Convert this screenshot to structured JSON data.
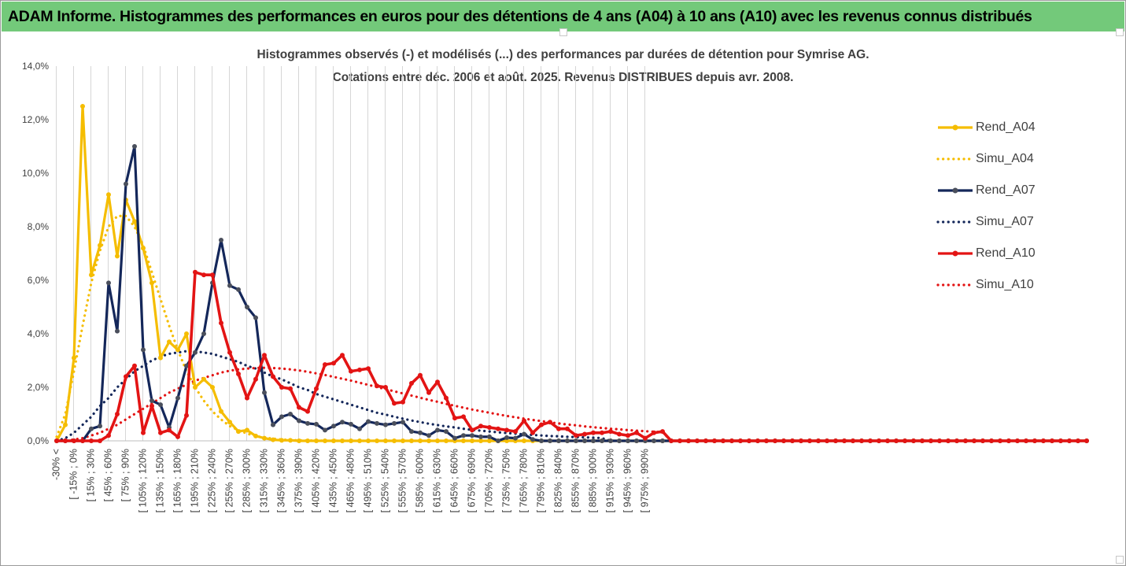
{
  "header": {
    "title": "ADAM Informe. Histogrammes des performances en euros pour des détentions de 4 ans (A04) à 10 ans (A10) avec les revenus connus distribués"
  },
  "chart_data": {
    "type": "line",
    "title": "Histogrammes observés (-) et modélisés (...) des performances par durées de détention pour Symrise  AG.",
    "subtitle": "Cotations entre déc. 2006 et août. 2025. Revenus DISTRIBUES depuis avr. 2008.",
    "xlabel": "",
    "ylabel": "",
    "ylim": [
      0,
      14
    ],
    "y_unit": "%",
    "y_ticks": [
      "0,0%",
      "2,0%",
      "4,0%",
      "6,0%",
      "8,0%",
      "10,0%",
      "12,0%",
      "14,0%"
    ],
    "grid": "vertical",
    "legend_position": "right",
    "x_tick_labels": [
      "-30% <",
      "[ -15% ; 0%",
      "[ 15% ; 30%",
      "[ 45% ; 60%",
      "[ 75% ; 90%",
      "[ 105% ; 120%",
      "[ 135% ; 150%",
      "[ 165% ; 180%",
      "[ 195% ; 210%",
      "[ 225% ; 240%",
      "[ 255% ; 270%",
      "[ 285% ; 300%",
      "[ 315% ; 330%",
      "[ 345% ; 360%",
      "[ 375% ; 390%",
      "[ 405% ; 420%",
      "[ 435% ; 450%",
      "[ 465% ; 480%",
      "[ 495% ; 510%",
      "[ 525% ; 540%",
      "[ 555% ; 570%",
      "[ 585% ; 600%",
      "[ 615% ; 630%",
      "[ 645% ; 660%",
      "[ 675% ; 690%",
      "[ 705% ; 720%",
      "[ 735% ; 750%",
      "[ 765% ; 780%",
      "[ 795% ; 810%",
      "[ 825% ; 840%",
      "[ 855% ; 870%",
      "[ 885% ; 900%",
      "[ 915% ; 930%",
      "[ 945% ; 960%",
      "[ 975% ; 990%"
    ],
    "series": [
      {
        "name": "Rend_A04",
        "style": "solid",
        "color": "#f5bd00",
        "values": [
          0.0,
          0.6,
          3.1,
          12.5,
          6.2,
          7.3,
          9.2,
          6.9,
          9.0,
          8.2,
          7.2,
          5.9,
          3.1,
          3.7,
          3.4,
          4.0,
          2.0,
          2.3,
          2.0,
          1.1,
          0.7,
          0.35,
          0.4,
          0.18,
          0.1,
          0.04,
          0.02,
          0.02,
          0.0,
          0.0,
          0.0,
          0.0,
          0.0,
          0.0,
          0.0,
          0.0,
          0.0,
          0.0,
          0.0,
          0.0,
          0.0,
          0.0,
          0.0,
          0.0,
          0.0,
          0.0,
          0.0,
          0.0,
          0.0,
          0.0,
          0.0,
          0.0,
          0.0,
          0.0,
          0.0,
          0.0,
          0.0,
          0.0,
          0.0,
          0.0,
          0.0,
          0.0,
          0.0,
          0.0,
          0.0,
          0.0,
          0.0,
          0.0,
          0.0,
          0.0,
          0.0,
          0.0,
          0.0,
          0.0,
          0.0,
          0.0,
          0.0,
          0.0,
          0.0,
          0.0,
          0.0,
          0.0,
          0.0,
          0.0,
          0.0,
          0.0,
          0.0,
          0.0,
          0.0,
          0.0,
          0.0,
          0.0,
          0.0,
          0.0,
          0.0,
          0.0,
          0.0,
          0.0,
          0.0,
          0.0,
          0.0,
          0.0,
          0.0,
          0.0,
          0.0,
          0.0,
          0.0,
          0.0,
          0.0,
          0.0,
          0.0,
          0.0,
          0.0,
          0.0,
          0.0,
          0.0,
          0.0,
          0.0,
          0.0,
          0.0
        ]
      },
      {
        "name": "Simu_A04",
        "style": "dotted",
        "color": "#f5bd00",
        "values": [
          0.15,
          1.0,
          2.6,
          4.3,
          5.9,
          7.1,
          8.0,
          8.4,
          8.4,
          8.0,
          7.3,
          6.3,
          5.3,
          4.3,
          3.4,
          2.6,
          2.0,
          1.5,
          1.1,
          0.8,
          0.55,
          0.4,
          0.27,
          0.18,
          0.12,
          0.08,
          0.05,
          0.03,
          0.02,
          0.01,
          0.01,
          0.0,
          0.0,
          0.0,
          0.0,
          0.0,
          0.0,
          0.0,
          0.0,
          0.0,
          0.0,
          0.0,
          0.0,
          0.0,
          0.0,
          0.0,
          0.0,
          0.0,
          0.0,
          0.0,
          0.0,
          0.0,
          0.0,
          0.0,
          0.0,
          0.0,
          0.0,
          0.0,
          0.0,
          0.0,
          0.0,
          0.0,
          0.0,
          0.0,
          0.0,
          0.0,
          0.0,
          0.0,
          0.0,
          0.0,
          0.0,
          0.0,
          0.0,
          0.0,
          0.0,
          0.0,
          0.0,
          0.0,
          0.0,
          0.0,
          0.0,
          0.0,
          0.0,
          0.0,
          0.0,
          0.0,
          0.0,
          0.0,
          0.0,
          0.0,
          0.0,
          0.0,
          0.0,
          0.0,
          0.0,
          0.0,
          0.0,
          0.0,
          0.0,
          0.0,
          0.0,
          0.0,
          0.0,
          0.0,
          0.0,
          0.0,
          0.0,
          0.0,
          0.0,
          0.0,
          0.0,
          0.0,
          0.0,
          0.0,
          0.0,
          0.0,
          0.0,
          0.0,
          0.0,
          0.0
        ]
      },
      {
        "name": "Rend_A07",
        "style": "solid",
        "color": "#14275a",
        "values": [
          0.0,
          0.0,
          0.0,
          0.0,
          0.45,
          0.55,
          5.9,
          4.1,
          9.6,
          11.0,
          3.4,
          1.5,
          1.35,
          0.5,
          1.6,
          2.8,
          3.3,
          4.0,
          5.9,
          7.5,
          5.8,
          5.65,
          5.0,
          4.6,
          1.8,
          0.6,
          0.9,
          1.0,
          0.75,
          0.65,
          0.62,
          0.4,
          0.55,
          0.7,
          0.62,
          0.45,
          0.72,
          0.65,
          0.6,
          0.65,
          0.7,
          0.35,
          0.3,
          0.2,
          0.4,
          0.35,
          0.1,
          0.2,
          0.2,
          0.15,
          0.15,
          0.0,
          0.12,
          0.1,
          0.25,
          0.05,
          0.0,
          0.0,
          0.0,
          0.0,
          0.0,
          0.0,
          0.0,
          0.0,
          0.0,
          0.0,
          0.0,
          0.0,
          0.0,
          0.0,
          0.0,
          0.0,
          0.0,
          0.0,
          0.0,
          0.0,
          0.0,
          0.0,
          0.0,
          0.0,
          0.0,
          0.0,
          0.0,
          0.0,
          0.0,
          0.0,
          0.0,
          0.0,
          0.0,
          0.0,
          0.0,
          0.0,
          0.0,
          0.0,
          0.0,
          0.0,
          0.0,
          0.0,
          0.0,
          0.0,
          0.0,
          0.0,
          0.0,
          0.0,
          0.0,
          0.0,
          0.0,
          0.0,
          0.0,
          0.0,
          0.0,
          0.0,
          0.0,
          0.0,
          0.0,
          0.0,
          0.0,
          0.0,
          0.0,
          0.0
        ]
      },
      {
        "name": "Simu_A07",
        "style": "dotted",
        "color": "#14275a",
        "values": [
          0.0,
          0.1,
          0.3,
          0.6,
          0.9,
          1.3,
          1.6,
          2.0,
          2.3,
          2.6,
          2.8,
          3.0,
          3.15,
          3.25,
          3.3,
          3.35,
          3.35,
          3.3,
          3.25,
          3.15,
          3.05,
          2.95,
          2.8,
          2.7,
          2.55,
          2.4,
          2.3,
          2.15,
          2.0,
          1.9,
          1.75,
          1.65,
          1.55,
          1.45,
          1.35,
          1.25,
          1.15,
          1.05,
          0.98,
          0.9,
          0.83,
          0.76,
          0.7,
          0.64,
          0.59,
          0.54,
          0.5,
          0.45,
          0.41,
          0.38,
          0.35,
          0.32,
          0.29,
          0.27,
          0.24,
          0.22,
          0.2,
          0.18,
          0.17,
          0.15,
          0.14,
          0.13,
          0.12,
          0.1,
          0.0,
          0.0,
          0.0,
          0.0,
          0.0,
          0.0,
          0.0,
          0.0,
          0.0,
          0.0,
          0.0,
          0.0,
          0.0,
          0.0,
          0.0,
          0.0,
          0.0,
          0.0,
          0.0,
          0.0,
          0.0,
          0.0,
          0.0,
          0.0,
          0.0,
          0.0,
          0.0,
          0.0,
          0.0,
          0.0,
          0.0,
          0.0,
          0.0,
          0.0,
          0.0,
          0.0,
          0.0,
          0.0,
          0.0,
          0.0,
          0.0,
          0.0,
          0.0,
          0.0,
          0.0,
          0.0,
          0.0,
          0.0,
          0.0,
          0.0,
          0.0,
          0.0,
          0.0,
          0.0,
          0.0,
          0.0
        ]
      },
      {
        "name": "Rend_A10",
        "style": "solid",
        "color": "#e31414",
        "values": [
          0.0,
          0.0,
          0.0,
          0.0,
          0.0,
          0.0,
          0.2,
          1.0,
          2.4,
          2.8,
          0.3,
          1.3,
          0.3,
          0.4,
          0.15,
          0.95,
          6.3,
          6.2,
          6.2,
          4.4,
          3.3,
          2.5,
          1.6,
          2.3,
          3.2,
          2.4,
          2.0,
          1.95,
          1.25,
          1.1,
          1.95,
          2.85,
          2.9,
          3.2,
          2.6,
          2.65,
          2.7,
          2.05,
          2.0,
          1.4,
          1.45,
          2.15,
          2.45,
          1.8,
          2.2,
          1.6,
          0.85,
          0.9,
          0.4,
          0.55,
          0.5,
          0.45,
          0.4,
          0.35,
          0.75,
          0.3,
          0.6,
          0.7,
          0.45,
          0.45,
          0.2,
          0.25,
          0.3,
          0.3,
          0.35,
          0.25,
          0.2,
          0.3,
          0.1,
          0.3,
          0.35,
          0.0,
          0.0,
          0.0,
          0.0,
          0.0,
          0.0,
          0.0,
          0.0,
          0.0,
          0.0,
          0.0,
          0.0,
          0.0,
          0.0,
          0.0,
          0.0,
          0.0,
          0.0,
          0.0,
          0.0,
          0.0,
          0.0,
          0.0,
          0.0,
          0.0,
          0.0,
          0.0,
          0.0,
          0.0,
          0.0,
          0.0,
          0.0,
          0.0,
          0.0,
          0.0,
          0.0,
          0.0,
          0.0,
          0.0,
          0.0,
          0.0,
          0.0,
          0.0,
          0.0,
          0.0,
          0.0,
          0.0,
          0.0,
          0.0
        ]
      },
      {
        "name": "Simu_A10",
        "style": "dotted",
        "color": "#e31414",
        "values": [
          0.0,
          0.0,
          0.05,
          0.1,
          0.2,
          0.3,
          0.45,
          0.6,
          0.8,
          1.0,
          1.2,
          1.4,
          1.6,
          1.8,
          1.95,
          2.1,
          2.25,
          2.35,
          2.45,
          2.55,
          2.62,
          2.67,
          2.7,
          2.72,
          2.73,
          2.72,
          2.7,
          2.67,
          2.63,
          2.58,
          2.52,
          2.46,
          2.39,
          2.32,
          2.25,
          2.17,
          2.09,
          2.01,
          1.93,
          1.85,
          1.77,
          1.69,
          1.61,
          1.53,
          1.46,
          1.38,
          1.31,
          1.24,
          1.17,
          1.11,
          1.05,
          0.99,
          0.93,
          0.88,
          0.83,
          0.78,
          0.74,
          0.69,
          0.65,
          0.61,
          0.58,
          0.54,
          0.51,
          0.48,
          0.45,
          0.43,
          0.4,
          0.38,
          0.36,
          0.34,
          0.32,
          0.0,
          0.0,
          0.0,
          0.0,
          0.0,
          0.0,
          0.0,
          0.0,
          0.0,
          0.0,
          0.0,
          0.0,
          0.0,
          0.0,
          0.0,
          0.0,
          0.0,
          0.0,
          0.0,
          0.0,
          0.0,
          0.0,
          0.0,
          0.0,
          0.0,
          0.0,
          0.0,
          0.0,
          0.0,
          0.0,
          0.0,
          0.0,
          0.0,
          0.0,
          0.0,
          0.0,
          0.0,
          0.0,
          0.0,
          0.0,
          0.0,
          0.0,
          0.0,
          0.0,
          0.0,
          0.0,
          0.0,
          0.0,
          0.0
        ]
      }
    ]
  }
}
